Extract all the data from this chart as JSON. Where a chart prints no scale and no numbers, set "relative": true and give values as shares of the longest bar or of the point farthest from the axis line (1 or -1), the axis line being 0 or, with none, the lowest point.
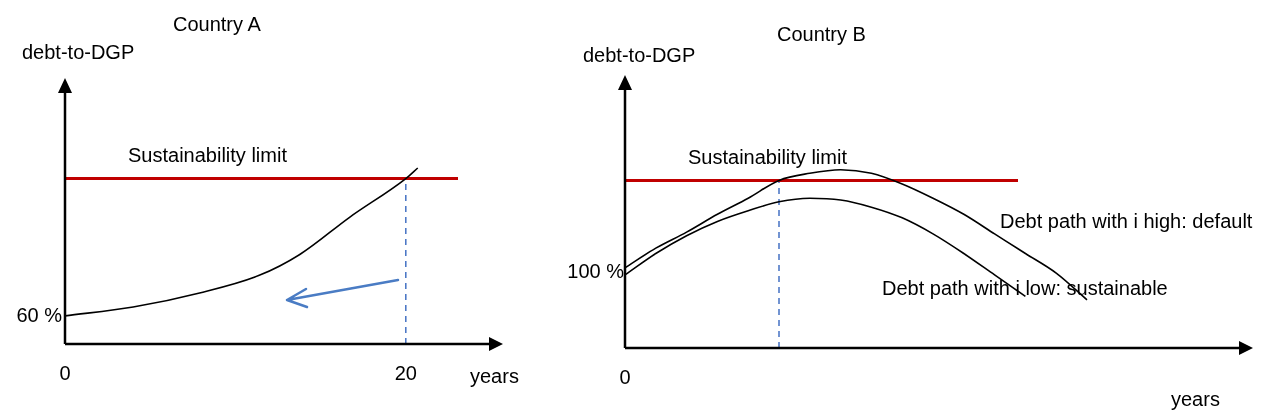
{
  "chart_data": [
    {
      "type": "line",
      "title": "Country A",
      "xlabel": "years",
      "ylabel": "debt-to-DGP",
      "relative": true,
      "xlim": [
        0,
        25
      ],
      "xticks": [
        0,
        20
      ],
      "series": [
        {
          "color": "#000000",
          "x": [
            0,
            4,
            7.9,
            11.4,
            13.8,
            16.7,
            20,
            20.7
          ],
          "values": [
            0.16,
            0.21,
            0.29,
            0.39,
            0.51,
            0.72,
            0.94,
            1
          ]
        }
      ],
      "ref_lines": [
        {
          "axis": "y",
          "value": 0.94,
          "label": "Sustainability limit",
          "color": "#c00000"
        },
        {
          "axis": "x",
          "value": 20,
          "color": "#4472c4",
          "line_style": "dashed"
        }
      ],
      "annotations": [
        {
          "text": "60 %",
          "x": 0,
          "y": 0.16
        }
      ]
    },
    {
      "type": "line",
      "title": "Country B",
      "xlabel": "years",
      "ylabel": "debt-to-DGP",
      "relative": true,
      "categories": [
        null,
        null,
        null,
        null,
        null,
        null,
        null,
        null,
        null,
        null,
        null,
        null,
        null,
        null,
        null,
        null,
        null,
        null,
        null,
        null,
        null
      ],
      "series": [
        {
          "name": "Debt path with i high: default",
          "color": "#000000",
          "values": [
            0.45,
            0.56,
            0.65,
            0.75,
            0.84,
            0.94,
            0.98,
            1,
            0.98,
            0.92,
            0.84,
            0.75,
            0.64,
            0.53,
            0.42,
            0.27,
            null,
            null,
            null,
            null,
            null
          ]
        },
        {
          "name": "Debt path with i low: sustainable",
          "color": "#000000",
          "values": [
            0.41,
            0.53,
            0.63,
            0.71,
            0.77,
            0.82,
            0.84,
            0.83,
            0.79,
            0.73,
            0.64,
            0.53,
            0.41,
            0.29,
            null,
            null,
            null,
            null,
            null,
            null,
            null
          ]
        }
      ],
      "ref_lines": [
        {
          "axis": "y",
          "value": 0.94,
          "label": "Sustainability limit",
          "color": "#c00000"
        }
      ],
      "annotations": [
        "0",
        "100 %"
      ]
    }
  ]
}
